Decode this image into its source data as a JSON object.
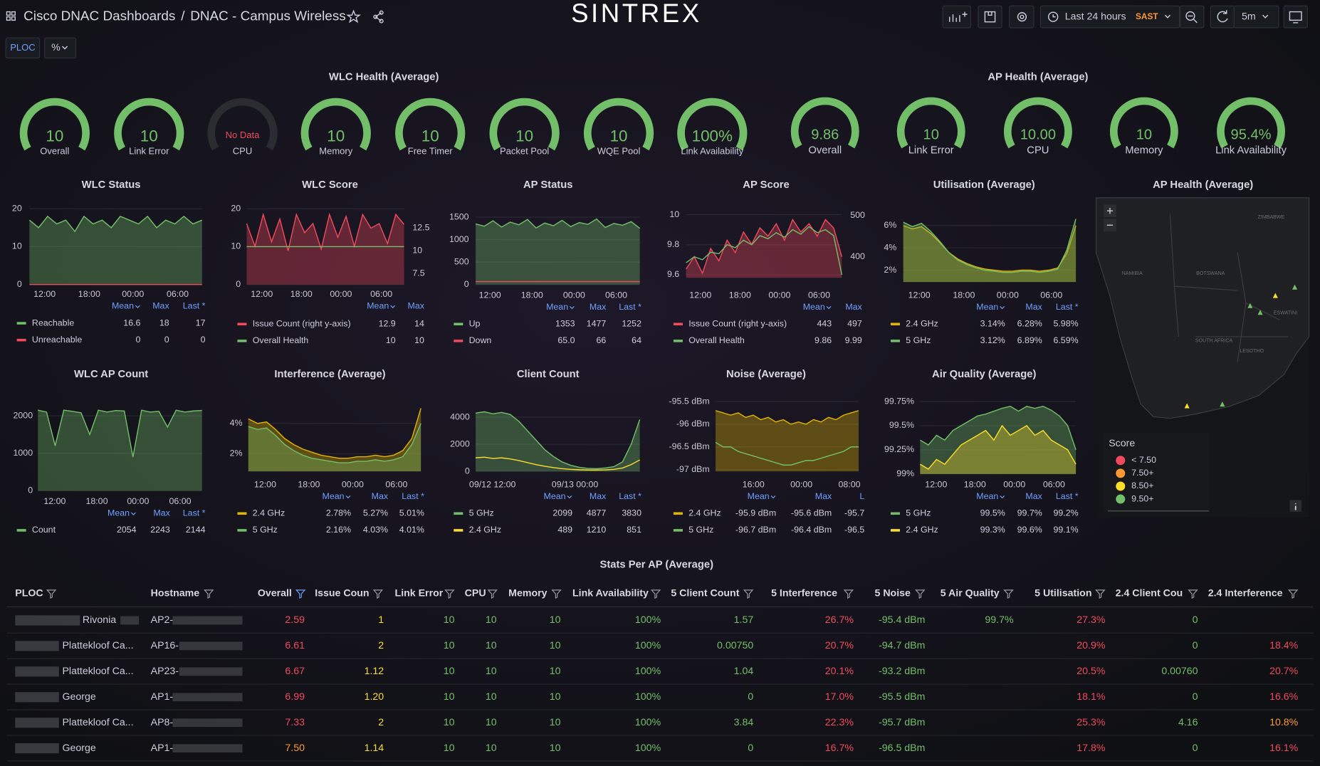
{
  "header": {
    "parent": "Cisco DNAC Dashboards",
    "separator": "/",
    "title": "DNAC - Campus Wireless",
    "logo": "SINTREX",
    "time_range": "Last 24 hours",
    "timezone": "SAST",
    "refresh": "5m"
  },
  "variables": [
    "PLOC",
    "%"
  ],
  "gauge_groups": [
    {
      "title": "WLC Health (Average)",
      "gauges": [
        {
          "value": "10",
          "label": "Overall"
        },
        {
          "value": "10",
          "label": "Link Error"
        },
        {
          "status": "No Data",
          "label": "CPU"
        },
        {
          "value": "10",
          "label": "Memory"
        },
        {
          "value": "10",
          "label": "Free Timer"
        },
        {
          "value": "10",
          "label": "Packet Pool"
        },
        {
          "value": "10",
          "label": "WQE Pool"
        },
        {
          "value": "100%",
          "label": "Link Availability"
        }
      ]
    },
    {
      "title": "AP Health (Average)",
      "gauges": [
        {
          "value": "9.86",
          "label": "Overall"
        },
        {
          "value": "10",
          "label": "Link Error"
        },
        {
          "value": "10.00",
          "label": "CPU"
        },
        {
          "value": "10",
          "label": "Memory"
        },
        {
          "value": "95.4%",
          "label": "Link Availability"
        }
      ]
    }
  ],
  "panels": [
    {
      "title": "WLC Status",
      "ylim": [
        0,
        20
      ],
      "yticks": [
        0,
        10,
        20
      ],
      "xticks": [
        "12:00",
        "18:00",
        "00:00",
        "06:00"
      ],
      "legend_headers": [
        "Mean",
        "Max",
        "Last *"
      ],
      "series": [
        {
          "name": "Reachable",
          "color": "#73bf69",
          "values": [
            17,
            15,
            18,
            16,
            17,
            14,
            18,
            16,
            17,
            15,
            18,
            17,
            16,
            18,
            15,
            17,
            16,
            18,
            16,
            17
          ],
          "stats": [
            "16.6",
            "18",
            "17"
          ]
        },
        {
          "name": "Unreachable",
          "color": "#f2495c",
          "values": [
            0,
            0,
            0,
            0,
            0,
            0,
            0,
            0,
            0,
            0,
            0,
            0,
            0,
            0,
            0,
            0,
            0,
            0,
            0,
            0
          ],
          "stats": [
            "0",
            "0",
            "0"
          ]
        }
      ]
    },
    {
      "title": "WLC Score",
      "ylim": [
        0,
        20
      ],
      "yticks": [
        0,
        10,
        20
      ],
      "y2lim": [
        6.3,
        14.63
      ],
      "y2ticks": [
        7.5,
        10,
        12.5
      ],
      "xticks": [
        "12:00",
        "18:00",
        "00:00",
        "06:00"
      ],
      "legend_headers": [
        "Mean",
        "Max"
      ],
      "series": [
        {
          "name": "Issue Count (right y-axis)",
          "color": "#f2495c",
          "axis": "y2",
          "values": [
            13,
            10.5,
            14,
            11,
            13.5,
            10,
            14,
            12,
            13,
            10.2,
            14,
            11.5,
            13.8,
            10.5,
            14,
            12.5,
            13,
            10.8,
            14,
            12.9
          ],
          "stats": [
            "12.9",
            "14"
          ]
        },
        {
          "name": "Overall Health",
          "color": "#73bf69",
          "values": [
            10,
            10,
            10,
            10,
            10,
            10,
            10,
            10,
            10,
            10,
            10,
            10,
            10,
            10,
            10,
            10,
            10,
            10,
            10,
            10
          ],
          "stats": [
            "10",
            "10"
          ]
        }
      ]
    },
    {
      "title": "AP Status",
      "ylim": [
        0,
        1500
      ],
      "yticks": [
        0,
        500,
        1000,
        1500
      ],
      "xticks": [
        "12:00",
        "18:00",
        "00:00",
        "06:00"
      ],
      "legend_headers": [
        "Mean",
        "Max",
        "Last *"
      ],
      "series": [
        {
          "name": "Up",
          "color": "#73bf69",
          "values": [
            1350,
            1300,
            1420,
            1280,
            1390,
            1330,
            1450,
            1260,
            1370,
            1310,
            1430,
            1290,
            1380,
            1340,
            1460,
            1270,
            1360,
            1320,
            1400,
            1252
          ],
          "stats": [
            "1353",
            "1477",
            "1252"
          ]
        },
        {
          "name": "Down",
          "color": "#f2495c",
          "values": [
            65,
            65,
            65,
            65,
            65,
            65,
            65,
            65,
            65,
            65,
            65,
            65,
            65,
            65,
            65,
            65,
            65,
            65,
            65,
            64
          ],
          "stats": [
            "65.0",
            "66",
            "64"
          ]
        }
      ]
    },
    {
      "title": "AP Score",
      "ylim": [
        9.58,
        10
      ],
      "yticks": [
        9.6,
        9.8,
        10
      ],
      "y2lim": [
        349,
        502
      ],
      "y2ticks": [
        400,
        500
      ],
      "xticks": [
        "12:00",
        "18:00",
        "00:00",
        "06:00"
      ],
      "legend_headers": [
        "Mean",
        "Max"
      ],
      "series": [
        {
          "name": "Issue Count (right y-axis)",
          "color": "#f2495c",
          "axis": "y2",
          "values": [
            370,
            400,
            360,
            420,
            390,
            440,
            410,
            460,
            430,
            470,
            450,
            480,
            440,
            490,
            460,
            480,
            450,
            490,
            470,
            400
          ],
          "stats": [
            "443",
            "497"
          ]
        },
        {
          "name": "Overall Health",
          "color": "#73bf69",
          "values": [
            9.68,
            9.72,
            9.7,
            9.75,
            9.74,
            9.8,
            9.78,
            9.83,
            9.8,
            9.86,
            9.84,
            9.88,
            9.85,
            9.9,
            9.87,
            9.92,
            9.88,
            9.9,
            9.86,
            9.6
          ],
          "stats": [
            "9.86",
            "9.99"
          ]
        }
      ]
    },
    {
      "title": "Utilisation (Average)",
      "ylim": [
        0.94,
        6.98
      ],
      "yticks": [
        {
          "value": 2,
          "label": "2%"
        },
        {
          "value": 4,
          "label": "4%"
        },
        {
          "value": 6,
          "label": "6%"
        }
      ],
      "xticks": [
        "12:00",
        "18:00",
        "00:00",
        "06:00"
      ],
      "legend_headers": [
        "Mean",
        "Max",
        "Last *"
      ],
      "series": [
        {
          "name": "2.4 GHz",
          "color": "#e0b400",
          "values": [
            6.0,
            5.7,
            5.9,
            5.3,
            4.5,
            3.6,
            3.0,
            2.6,
            2.3,
            2.1,
            2.0,
            1.9,
            1.9,
            2.0,
            2.0,
            1.9,
            2.0,
            2.2,
            3.5,
            6.0
          ],
          "stats": [
            "3.14%",
            "6.28%",
            "5.98%"
          ]
        },
        {
          "name": "5 GHz",
          "color": "#73bf69",
          "values": [
            6.3,
            5.9,
            6.2,
            5.5,
            4.6,
            3.6,
            2.9,
            2.5,
            2.2,
            2.0,
            1.9,
            1.8,
            1.8,
            1.9,
            1.9,
            1.8,
            1.9,
            2.1,
            3.8,
            6.6
          ],
          "stats": [
            "3.12%",
            "6.89%",
            "6.59%"
          ]
        }
      ]
    },
    {
      "title": "WLC AP Count",
      "ylim": [
        0,
        2202
      ],
      "yticks": [
        0,
        1000,
        2000
      ],
      "xticks": [
        "12:00",
        "18:00",
        "00:00",
        "06:00"
      ],
      "legend_headers": [
        "Mean",
        "Max",
        "Last *"
      ],
      "series": [
        {
          "name": "Count",
          "color": "#73bf69",
          "values": [
            2150,
            2100,
            1200,
            2150,
            2120,
            2080,
            1500,
            2150,
            2100,
            2140,
            2130,
            900,
            2150,
            2100,
            2120,
            1700,
            2150,
            2100,
            2130,
            2144
          ],
          "stats": [
            "2054",
            "2243",
            "2144"
          ]
        }
      ]
    },
    {
      "title": "Interference (Average)",
      "ylim": [
        0.83,
        5.28
      ],
      "yticks": [
        {
          "value": 2,
          "label": "2%"
        },
        {
          "value": 4,
          "label": "4%"
        }
      ],
      "xticks": [
        "12:00",
        "18:00",
        "00:00",
        "06:00"
      ],
      "legend_headers": [
        "Mean",
        "Max",
        "Last *"
      ],
      "series": [
        {
          "name": "2.4 GHz",
          "color": "#e0b400",
          "values": [
            4.3,
            4.0,
            4.1,
            3.6,
            3.0,
            2.6,
            2.3,
            2.1,
            1.9,
            1.8,
            1.7,
            1.7,
            1.8,
            1.8,
            1.9,
            1.8,
            1.9,
            2.2,
            3.0,
            5.0
          ],
          "stats": [
            "2.78%",
            "5.27%",
            "5.01%"
          ]
        },
        {
          "name": "5 GHz",
          "color": "#73bf69",
          "values": [
            3.8,
            3.6,
            3.7,
            3.2,
            2.6,
            2.2,
            1.9,
            1.7,
            1.6,
            1.5,
            1.4,
            1.4,
            1.5,
            1.5,
            1.6,
            1.5,
            1.6,
            1.8,
            2.6,
            4.0
          ],
          "stats": [
            "2.16%",
            "4.03%",
            "4.01%"
          ]
        }
      ]
    },
    {
      "title": "Client Count",
      "ylim": [
        0,
        4970
      ],
      "yticks": [
        0,
        2000,
        4000
      ],
      "xticks": [
        "09/12 12:00",
        "09/13 00:00"
      ],
      "legend_headers": [
        "Mean",
        "Max",
        "Last *"
      ],
      "series": [
        {
          "name": "5 GHz",
          "color": "#73bf69",
          "values": [
            4300,
            4400,
            4250,
            4350,
            4200,
            3700,
            3000,
            2300,
            1600,
            1100,
            700,
            450,
            300,
            220,
            200,
            250,
            350,
            700,
            2000,
            3830
          ],
          "stats": [
            "2099",
            "4877",
            "3830"
          ]
        },
        {
          "name": "2.4 GHz",
          "color": "#fade2a",
          "values": [
            1000,
            1050,
            950,
            1000,
            920,
            800,
            650,
            500,
            380,
            280,
            200,
            150,
            120,
            100,
            100,
            110,
            150,
            250,
            500,
            851
          ],
          "stats": [
            "489",
            "1210",
            "851"
          ]
        }
      ]
    },
    {
      "title": "Noise (Average)",
      "ylim": [
        -97.04,
        -95.5
      ],
      "yticks": [
        {
          "value": -97,
          "label": "-97 dBm"
        },
        {
          "value": -96.5,
          "label": "-96.5 dBm"
        },
        {
          "value": -96,
          "label": "-96 dBm"
        },
        {
          "value": -95.5,
          "label": "-95.5 dBm"
        }
      ],
      "xticks": [
        "16:00",
        "00:00",
        "08:00"
      ],
      "legend_headers": [
        "Mean",
        "Max",
        "L"
      ],
      "series": [
        {
          "name": "2.4 GHz",
          "color": "#e0b400",
          "values": [
            -95.7,
            -95.75,
            -95.8,
            -95.75,
            -95.85,
            -95.8,
            -95.9,
            -95.85,
            -95.95,
            -95.9,
            -96.0,
            -95.95,
            -96.0,
            -95.9,
            -95.95,
            -95.85,
            -95.9,
            -95.8,
            -95.75,
            -95.7
          ],
          "stats": [
            "-95.9 dBm",
            "-95.6 dBm",
            "-95.7"
          ]
        },
        {
          "name": "5 GHz",
          "color": "#73bf69",
          "values": [
            -96.4,
            -96.5,
            -96.5,
            -96.6,
            -96.65,
            -96.7,
            -96.75,
            -96.8,
            -96.85,
            -96.9,
            -96.9,
            -96.85,
            -96.8,
            -96.8,
            -96.75,
            -96.7,
            -96.65,
            -96.6,
            -96.5,
            -96.5
          ],
          "stats": [
            "-96.7 dBm",
            "-96.4 dBm",
            "-96.5"
          ]
        }
      ]
    },
    {
      "title": "Air Quality (Average)",
      "ylim": [
        99,
        99.75
      ],
      "yticks": [
        {
          "value": 99,
          "label": "99%"
        },
        {
          "value": 99.25,
          "label": "99.25%"
        },
        {
          "value": 99.5,
          "label": "99.5%"
        },
        {
          "value": 99.75,
          "label": "99.75%"
        }
      ],
      "xticks": [
        "12:00",
        "18:00",
        "00:00",
        "06:00"
      ],
      "legend_headers": [
        "Mean",
        "Max",
        "Last *"
      ],
      "series": [
        {
          "name": "5 GHz",
          "color": "#73bf69",
          "values": [
            99.35,
            99.3,
            99.4,
            99.35,
            99.45,
            99.5,
            99.55,
            99.6,
            99.62,
            99.65,
            99.68,
            99.7,
            99.65,
            99.7,
            99.68,
            99.7,
            99.66,
            99.6,
            99.5,
            99.25
          ],
          "stats": [
            "99.5%",
            "99.7%",
            "99.2%"
          ]
        },
        {
          "name": "2.4 GHz",
          "color": "#fade2a",
          "values": [
            99.1,
            99.05,
            99.15,
            99.1,
            99.2,
            99.3,
            99.35,
            99.4,
            99.45,
            99.35,
            99.5,
            99.4,
            99.45,
            99.5,
            99.4,
            99.45,
            99.35,
            99.3,
            99.25,
            99.1
          ],
          "stats": [
            "99.3%",
            "99.6%",
            "99.1%"
          ]
        }
      ]
    }
  ],
  "map": {
    "title": "AP Health (Average)",
    "regions": [
      "ZIMBABWE",
      "NAMIBIA",
      "BOTSWANA",
      "SOUTH AFRICA",
      "LESOTHO",
      "ESWATINI"
    ],
    "legend_title": "Score",
    "legend": [
      {
        "label": "< 7.50",
        "color": "#f2495c"
      },
      {
        "label": "7.50+",
        "color": "#ff9830"
      },
      {
        "label": "8.50+",
        "color": "#fade2a"
      },
      {
        "label": "9.50+",
        "color": "#73bf69"
      }
    ]
  },
  "table": {
    "title": "Stats Per AP (Average)",
    "columns": [
      "PLOC",
      "Hostname",
      "Overall",
      "Issue Coun",
      "Link Error",
      "CPU",
      "Memory",
      "Link Availability",
      "5 Client Count",
      "5 Interference",
      "5 Noise",
      "5 Air Quality",
      "5 Utilisation",
      "2.4 Client Cou",
      "2.4 Interference"
    ],
    "rows": [
      [
        "Rivonia",
        "AP2-",
        "2.59",
        "1",
        "10",
        "10",
        "10",
        "100%",
        "1.57",
        "26.7%",
        "-95.4 dBm",
        "99.7%",
        "27.3%",
        "0",
        null
      ],
      [
        "Plattekloof Ca...",
        "AP16-",
        "6.61",
        "2",
        "10",
        "10",
        "10",
        "100%",
        "0.00750",
        "20.7%",
        "-94.7 dBm",
        null,
        "20.9%",
        "0",
        "18.4%"
      ],
      [
        "Plattekloof Ca...",
        "AP23-",
        "6.67",
        "1.12",
        "10",
        "10",
        "10",
        "100%",
        "1.04",
        "20.1%",
        "-93.2 dBm",
        null,
        "20.5%",
        "0.00760",
        "20.7%"
      ],
      [
        "George",
        "AP1-",
        "6.99",
        "1.20",
        "10",
        "10",
        "10",
        "100%",
        "0",
        "17.0%",
        "-95.5 dBm",
        null,
        "18.1%",
        "0",
        "16.6%"
      ],
      [
        "Plattekloof Ca...",
        "AP8-",
        "7.33",
        "2",
        "10",
        "10",
        "10",
        "100%",
        "3.84",
        "22.3%",
        "-95.7 dBm",
        null,
        "25.3%",
        "4.16",
        "10.8%"
      ],
      [
        "George",
        "AP1-",
        "7.50",
        "1.14",
        "10",
        "10",
        "10",
        "100%",
        "0",
        "16.7%",
        "-96.5 dBm",
        null,
        "17.8%",
        "0",
        "16.1%"
      ]
    ]
  }
}
